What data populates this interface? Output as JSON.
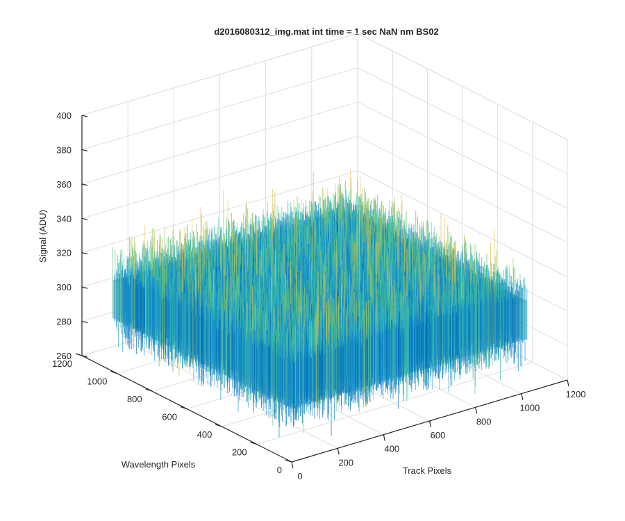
{
  "chart_data": {
    "type": "surface",
    "title": "d2016080312_img.mat int time = 1 sec  NaN nm BS02",
    "xlabel": "Track Pixels",
    "ylabel": "Wavelength Pixels",
    "zlabel": "Signal (ADU)",
    "xlim": [
      0,
      1200
    ],
    "ylim": [
      0,
      1200
    ],
    "zlim": [
      260,
      400
    ],
    "xticks": [
      "0",
      "200",
      "400",
      "600",
      "800",
      "1000",
      "1200"
    ],
    "yticks": [
      "0",
      "200",
      "400",
      "600",
      "800",
      "1000",
      "1200"
    ],
    "zticks": [
      "260",
      "280",
      "300",
      "320",
      "340",
      "360",
      "380",
      "400"
    ],
    "surface": {
      "x_range": [
        0,
        1024
      ],
      "y_range": [
        0,
        1024
      ],
      "mean_signal": 305,
      "min_signal": 268,
      "max_signal": 360,
      "description": ""
    },
    "grid": true,
    "colormap": [
      "#0072bd",
      "#1a8fd0",
      "#2fb5b5",
      "#5cc38a",
      "#a9c35a",
      "#e3c24d"
    ]
  }
}
